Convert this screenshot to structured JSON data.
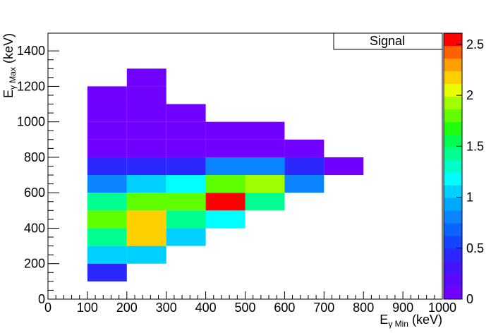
{
  "chart_data": {
    "type": "heatmap",
    "title": "Signal",
    "xlabel": "E",
    "xlabel_sub": "γ Min",
    "xlabel_unit": "(keV)",
    "ylabel": "E",
    "ylabel_sub": "γ Max",
    "ylabel_unit": "(keV)",
    "xlim": [
      0,
      1000
    ],
    "xticks": [
      0,
      100,
      200,
      300,
      400,
      500,
      600,
      700,
      800,
      900,
      1000
    ],
    "ylim": [
      0,
      1500
    ],
    "yticks": [
      0,
      200,
      400,
      600,
      800,
      1000,
      1200,
      1400
    ],
    "zlim": [
      0,
      2.61
    ],
    "zticks": [
      0,
      0.5,
      1,
      1.5,
      2,
      2.5
    ],
    "xbins": [
      100,
      200,
      300,
      400,
      500,
      600,
      700,
      800
    ],
    "ybins": [
      100,
      200,
      300,
      400,
      500,
      600,
      700,
      800,
      900,
      1000,
      1100,
      1200,
      1300
    ],
    "z": [
      [
        0.45,
        null,
        null,
        null,
        null,
        null,
        null
      ],
      [
        1.1,
        1.1,
        null,
        null,
        null,
        null,
        null
      ],
      [
        1.45,
        2.15,
        1.0,
        null,
        null,
        null,
        null
      ],
      [
        1.75,
        2.15,
        1.45,
        1.15,
        null,
        null,
        null
      ],
      [
        1.45,
        1.75,
        1.75,
        2.55,
        1.45,
        null,
        null
      ],
      [
        0.75,
        1.05,
        1.15,
        1.75,
        1.95,
        0.75,
        null
      ],
      [
        0.4,
        0.45,
        0.45,
        0.75,
        0.75,
        0.45,
        0.1
      ],
      [
        0.1,
        0.1,
        0.1,
        0.1,
        0.1,
        0.1,
        null
      ],
      [
        0.1,
        0.1,
        0.1,
        0.1,
        0.1,
        null,
        null
      ],
      [
        0.1,
        0.1,
        0.1,
        null,
        null,
        null,
        null
      ],
      [
        0.1,
        0.1,
        null,
        null,
        null,
        null,
        null
      ],
      [
        null,
        0.1,
        null,
        null,
        null,
        null,
        null
      ]
    ],
    "palette": [
      "#7000ff",
      "#5a08ff",
      "#4414ff",
      "#2a28ff",
      "#1444ff",
      "#0a64ff",
      "#0a84ff",
      "#00a8ff",
      "#00d0ff",
      "#00ffff",
      "#00ffc8",
      "#00ff90",
      "#00ff50",
      "#20ff10",
      "#60ff00",
      "#a0ff00",
      "#e8ff00",
      "#ffd000",
      "#ffa000",
      "#ff6000",
      "#ff0000"
    ]
  }
}
